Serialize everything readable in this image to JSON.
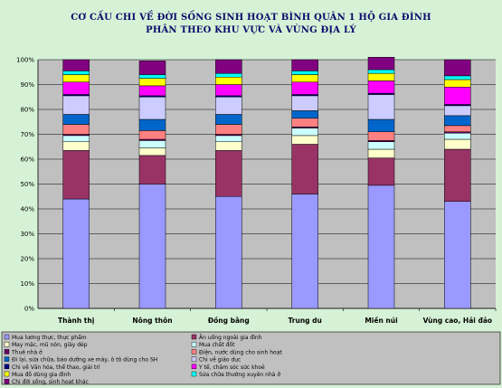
{
  "chart_data": {
    "type": "bar",
    "stacked": true,
    "title": "CƠ CẤU CHI VỀ ĐỜI SỐNG SINH HOẠT BÌNH QUÂN 1 HỘ GIA ĐÌNH",
    "subtitle": "PHÂN THEO KHU VỰC VÀ VÙNG ĐỊA LÝ",
    "categories": [
      "Thành thị",
      "Nông thôn",
      "Đồng bằng",
      "Trung du",
      "Miền núi",
      "Vùng cao, Hải đảo"
    ],
    "ylim": [
      0,
      100
    ],
    "y_ticks": [
      "0%",
      "10%",
      "20%",
      "30%",
      "40%",
      "50%",
      "60%",
      "70%",
      "80%",
      "90%",
      "100%"
    ],
    "grid": true,
    "legend_position": "bottom",
    "series": [
      {
        "name": "Mua lương thực, thực phẩm",
        "color": "#9999ff",
        "values": [
          44,
          50,
          45,
          46,
          49.5,
          43
        ]
      },
      {
        "name": "Ăn uống ngoài gia đình",
        "color": "#993366",
        "values": [
          19.5,
          11.5,
          18.5,
          20,
          11,
          21
        ]
      },
      {
        "name": "May mặc, mũ nón, giày dép",
        "color": "#ffffcc",
        "values": [
          3.5,
          3,
          3.5,
          3.5,
          3.5,
          4
        ]
      },
      {
        "name": "Mua chất đốt",
        "color": "#ccffff",
        "values": [
          2.5,
          3,
          2.5,
          3,
          3,
          2.5
        ]
      },
      {
        "name": "Thuê nhà ở",
        "color": "#660066",
        "values": [
          0.5,
          0.5,
          0.5,
          0.5,
          0.5,
          0.5
        ]
      },
      {
        "name": "Điện, nước dùng cho sinh hoạt",
        "color": "#ff8080",
        "values": [
          4,
          3.5,
          4,
          3.5,
          3.5,
          2.5
        ]
      },
      {
        "name": "Đi lại, sửa chữa, bảo dưỡng xe máy, ô tô dùng cho SH",
        "color": "#0066cc",
        "values": [
          4,
          4.5,
          4,
          3,
          5,
          4
        ]
      },
      {
        "name": "Chi về giáo dục",
        "color": "#ccccff",
        "values": [
          7.5,
          9,
          7,
          6,
          10,
          4
        ]
      },
      {
        "name": "Chi về Văn hóa, thể thao, giải trí",
        "color": "#000080",
        "values": [
          0.5,
          0.5,
          0.5,
          0.5,
          0.5,
          0.5
        ]
      },
      {
        "name": "Y tế, chăm sóc sức khoẻ",
        "color": "#ff00ff",
        "values": [
          5,
          4,
          4.5,
          5,
          5,
          7
        ]
      },
      {
        "name": "Mua đồ dùng gia đình",
        "color": "#ffff00",
        "values": [
          3,
          3,
          3,
          3,
          3,
          3
        ]
      },
      {
        "name": "Sửa chữa thường xuyên nhà ở",
        "color": "#00ffff",
        "values": [
          1.5,
          1.5,
          1.5,
          1.5,
          1.5,
          1.5
        ]
      },
      {
        "name": "Chi đời sống, sinh hoạt khác",
        "color": "#800080",
        "values": [
          4.5,
          5.5,
          5.5,
          4.5,
          5,
          6.5
        ]
      }
    ]
  }
}
